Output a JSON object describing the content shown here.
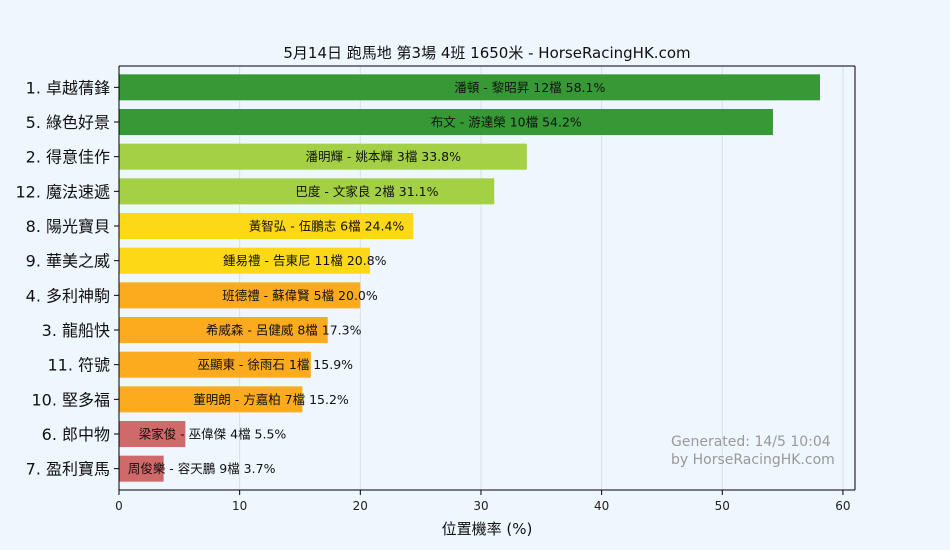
{
  "chart_data": {
    "type": "bar",
    "orientation": "horizontal",
    "title": "5月14日  跑馬地  第3場  4班  1650米 - HorseRacingHK.com",
    "xlabel": "位置機率 (%)",
    "ylabel": "",
    "xlim": [
      0,
      61
    ],
    "xticks": [
      0,
      10,
      20,
      30,
      40,
      50,
      60
    ],
    "grid": "vertical",
    "categories": [
      "1. 卓越蒨鋒",
      "5. 綠色好景",
      "2. 得意佳作",
      "12. 魔法速遞",
      "8. 陽光寶貝",
      "9. 華美之威",
      "4. 多利神駒",
      "3. 龍船快",
      "11. 符號",
      "10. 堅多福",
      "6. 郎中物",
      "7. 盈利寶馬"
    ],
    "values": [
      58.1,
      54.2,
      33.8,
      31.1,
      24.4,
      20.8,
      20.0,
      17.3,
      15.9,
      15.2,
      5.5,
      3.7
    ],
    "bar_labels": [
      "潘頓 - 黎昭昇 12檔  58.1%",
      "布文 - 游達榮 10檔  54.2%",
      "潘明輝 - 姚本輝 3檔  33.8%",
      "巴度 - 文家良 2檔  31.1%",
      "黃智弘 - 伍鵬志 6檔  24.4%",
      "鍾易禮 - 告東尼 11檔  20.8%",
      "班德禮 - 蘇偉賢 5檔  20.0%",
      "希威森 - 呂健威 8檔  17.3%",
      "巫顯東 - 徐雨石 1檔  15.9%",
      "董明朗 - 方嘉柏 7檔  15.2%",
      "梁家俊 - 巫偉傑 4檔  5.5%",
      "周俊樂 - 容天鵬 9檔  3.7%"
    ],
    "bar_colors": [
      "#379936",
      "#379936",
      "#a3d045",
      "#a3d045",
      "#fdd817",
      "#fdd817",
      "#fdab1e",
      "#fdab1e",
      "#fdab1e",
      "#fdab1e",
      "#d0696a",
      "#d0696a"
    ],
    "annotation": [
      "Generated: 14/5 10:04",
      "by HorseRacingHK.com"
    ]
  }
}
